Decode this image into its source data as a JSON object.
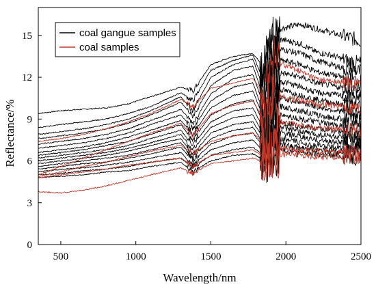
{
  "chart_data": {
    "type": "line",
    "xlabel": "Wavelength/nm",
    "ylabel": "Reflectance/%",
    "xlim": [
      350,
      2500
    ],
    "ylim": [
      0,
      17
    ],
    "xticks": [
      500,
      1000,
      1500,
      2000,
      2500
    ],
    "yticks": [
      0,
      3,
      6,
      9,
      12,
      15
    ],
    "grid": false,
    "legend_position": "top-left",
    "x_anchor_nm": [
      350,
      500,
      650,
      800,
      950,
      1100,
      1300,
      1380,
      1500,
      1650,
      1780,
      1850,
      1910,
      1970,
      2100,
      2200,
      2300,
      2400,
      2500
    ],
    "series": [
      {
        "name": "coal gangue samples",
        "color": "#000000",
        "curves": [
          [
            9.4,
            9.6,
            9.7,
            9.8,
            10.1,
            10.6,
            11.3,
            11.0,
            12.9,
            13.5,
            13.7,
            12.8,
            14.9,
            15.5,
            15.8,
            15.5,
            15.2,
            14.9,
            14.6
          ],
          [
            8.4,
            8.6,
            8.8,
            9.0,
            9.4,
            9.9,
            10.9,
            10.3,
            12.5,
            13.2,
            13.6,
            11.8,
            14.3,
            14.7,
            14.4,
            13.8,
            13.6,
            13.2,
            13.0
          ],
          [
            7.9,
            8.1,
            8.3,
            8.6,
            9.0,
            9.6,
            10.6,
            9.6,
            12.0,
            12.9,
            13.3,
            11.2,
            13.6,
            14.0,
            13.7,
            13.2,
            12.9,
            12.6,
            12.4
          ],
          [
            7.6,
            7.8,
            8.0,
            8.3,
            8.7,
            9.3,
            10.2,
            9.2,
            11.4,
            12.5,
            12.8,
            10.6,
            12.9,
            13.2,
            12.9,
            12.4,
            12.2,
            11.9,
            11.7
          ],
          [
            7.2,
            7.4,
            7.6,
            7.9,
            8.3,
            8.9,
            9.7,
            8.7,
            10.8,
            11.9,
            12.2,
            10.0,
            12.1,
            12.3,
            12.0,
            11.6,
            11.4,
            11.2,
            11.0
          ],
          [
            6.9,
            7.1,
            7.3,
            7.6,
            8.0,
            8.6,
            9.3,
            8.3,
            10.3,
            11.3,
            11.6,
            9.5,
            11.5,
            11.7,
            11.3,
            10.9,
            10.8,
            10.6,
            10.4
          ],
          [
            6.6,
            6.8,
            7.0,
            7.3,
            7.7,
            8.2,
            8.9,
            7.9,
            9.8,
            10.7,
            11.0,
            9.1,
            10.9,
            11.1,
            10.7,
            10.4,
            10.2,
            10.0,
            9.9
          ],
          [
            6.4,
            6.6,
            6.8,
            7.1,
            7.4,
            7.9,
            8.6,
            7.5,
            9.3,
            10.1,
            10.4,
            8.7,
            10.4,
            10.5,
            10.2,
            9.9,
            9.7,
            9.5,
            9.4
          ],
          [
            6.2,
            6.4,
            6.6,
            6.8,
            7.1,
            7.6,
            8.2,
            7.1,
            8.8,
            9.6,
            9.8,
            8.3,
            9.8,
            9.9,
            9.6,
            9.3,
            9.1,
            9.0,
            8.9
          ],
          [
            6.0,
            6.2,
            6.4,
            6.6,
            6.9,
            7.3,
            7.9,
            6.8,
            8.4,
            9.1,
            9.3,
            7.9,
            9.2,
            9.3,
            9.0,
            8.8,
            8.6,
            8.5,
            8.4
          ],
          [
            5.8,
            6.0,
            6.2,
            6.4,
            6.7,
            7.1,
            7.6,
            6.5,
            8.0,
            8.6,
            8.8,
            7.6,
            8.7,
            8.8,
            8.5,
            8.3,
            8.2,
            8.0,
            7.9
          ],
          [
            5.6,
            5.8,
            6.0,
            6.2,
            6.4,
            6.8,
            7.3,
            6.2,
            7.6,
            8.2,
            8.4,
            7.3,
            8.3,
            8.4,
            8.1,
            7.9,
            7.8,
            7.6,
            7.5
          ],
          [
            5.4,
            5.6,
            5.8,
            5.9,
            6.2,
            6.5,
            7.0,
            6.0,
            7.2,
            7.8,
            8.0,
            7.0,
            7.9,
            8.0,
            7.7,
            7.5,
            7.4,
            7.3,
            7.2
          ],
          [
            5.2,
            5.4,
            5.5,
            5.7,
            5.9,
            6.2,
            6.6,
            5.7,
            6.8,
            7.3,
            7.5,
            6.7,
            7.5,
            7.6,
            7.3,
            7.1,
            7.0,
            6.9,
            6.8
          ],
          [
            5.0,
            5.1,
            5.3,
            5.4,
            5.6,
            5.9,
            6.2,
            5.5,
            6.4,
            6.8,
            7.0,
            6.4,
            7.1,
            7.2,
            6.9,
            6.8,
            6.7,
            6.6,
            6.5
          ],
          [
            4.8,
            4.9,
            5.0,
            5.2,
            5.3,
            5.6,
            5.9,
            5.2,
            6.0,
            6.4,
            6.5,
            6.1,
            6.7,
            6.8,
            6.6,
            6.5,
            6.4,
            6.3,
            6.2
          ]
        ]
      },
      {
        "name": "coal samples",
        "color": "#c0392b",
        "curves": [
          [
            7.4,
            7.6,
            7.9,
            8.3,
            8.8,
            9.4,
            10.4,
            9.9,
            11.2,
            11.6,
            11.9,
            10.9,
            13.2,
            13.0,
            12.4,
            11.9,
            11.7,
            11.6,
            11.5
          ],
          [
            5.0,
            5.6,
            6.2,
            6.8,
            7.4,
            8.0,
            8.7,
            7.8,
            9.4,
            10.0,
            10.3,
            9.0,
            10.5,
            10.6,
            10.3,
            10.1,
            10.0,
            9.9,
            9.8
          ],
          [
            4.9,
            5.2,
            5.6,
            5.9,
            6.3,
            6.7,
            7.1,
            6.5,
            7.4,
            7.8,
            8.0,
            7.3,
            8.6,
            8.8,
            8.6,
            8.4,
            8.3,
            8.2,
            8.1
          ],
          [
            4.8,
            5.0,
            5.2,
            5.4,
            5.7,
            5.9,
            6.2,
            5.6,
            6.4,
            6.6,
            6.8,
            6.3,
            6.9,
            6.9,
            6.8,
            6.7,
            6.6,
            6.6,
            6.5
          ],
          [
            3.8,
            3.7,
            3.9,
            4.2,
            4.6,
            5.0,
            5.5,
            5.1,
            5.8,
            6.0,
            6.2,
            5.9,
            6.4,
            6.5,
            6.4,
            6.3,
            6.3,
            6.2,
            6.2
          ]
        ]
      }
    ]
  }
}
